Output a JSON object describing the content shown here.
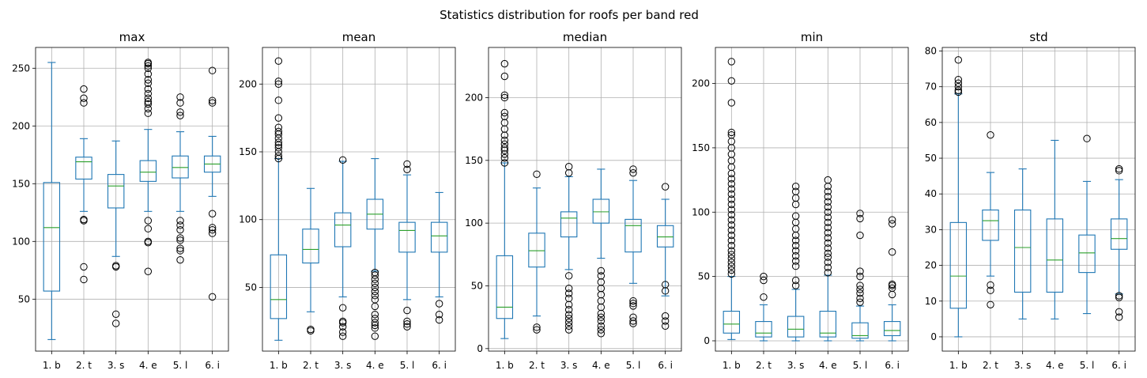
{
  "chart_data": {
    "type": "boxplot",
    "title": "Statistics distribution for roofs per band red",
    "categories": [
      "1. b",
      "2. t",
      "3. s",
      "4. e",
      "5. l",
      "6. i"
    ],
    "grid": true,
    "subplots": [
      {
        "title": "max",
        "ylim": [
          5,
          268
        ],
        "yticks": [
          50,
          100,
          150,
          200,
          250
        ],
        "boxes": [
          {
            "whislo": 15,
            "q1": 57,
            "med": 112,
            "q3": 151,
            "whishi": 255,
            "fliers": []
          },
          {
            "whislo": 126,
            "q1": 154,
            "med": 169,
            "q3": 173,
            "whishi": 189,
            "fliers": [
              67,
              78,
              118,
              119,
              220,
              224,
              232
            ]
          },
          {
            "whislo": 87,
            "q1": 129,
            "med": 148,
            "q3": 158,
            "whishi": 187,
            "fliers": [
              29,
              37,
              78,
              79
            ]
          },
          {
            "whislo": 126,
            "q1": 152,
            "med": 160,
            "q3": 170,
            "whishi": 197,
            "fliers": [
              74,
              99,
              100,
              111,
              118,
              211,
              215,
              219,
              221,
              224,
              228,
              232,
              237,
              240,
              245,
              250,
              252,
              254,
              255
            ]
          },
          {
            "whislo": 126,
            "q1": 155,
            "med": 164,
            "q3": 174,
            "whishi": 195,
            "fliers": [
              84,
              92,
              94,
              101,
              103,
              110,
              114,
              118,
              209,
              212,
              220,
              225
            ]
          },
          {
            "whislo": 139,
            "q1": 160,
            "med": 167,
            "q3": 174,
            "whishi": 191,
            "fliers": [
              52,
              107,
              110,
              112,
              124,
              220,
              222,
              248
            ]
          }
        ]
      },
      {
        "title": "mean",
        "ylim": [
          3,
          227
        ],
        "yticks": [
          50,
          100,
          150,
          200
        ],
        "boxes": [
          {
            "whislo": 11,
            "q1": 27,
            "med": 41,
            "q3": 74,
            "whishi": 145,
            "fliers": [
              145,
              147,
              150,
              153,
              155,
              157,
              160,
              163,
              165,
              168,
              175,
              188,
              200,
              202,
              217
            ]
          },
          {
            "whislo": 32,
            "q1": 68,
            "med": 78,
            "q3": 93,
            "whishi": 123,
            "fliers": [
              18,
              19
            ]
          },
          {
            "whislo": 43,
            "q1": 80,
            "med": 96,
            "q3": 105,
            "whishi": 143,
            "fliers": [
              14,
              17,
              21,
              24,
              25,
              35,
              144
            ]
          },
          {
            "whislo": 62,
            "q1": 93,
            "med": 104,
            "q3": 115,
            "whishi": 145,
            "fliers": [
              14,
              20,
              22,
              24,
              27,
              30,
              36,
              41,
              44,
              47,
              50,
              53,
              56,
              59,
              61
            ]
          },
          {
            "whislo": 41,
            "q1": 76,
            "med": 92,
            "q3": 98,
            "whishi": 133,
            "fliers": [
              21,
              23,
              25,
              33,
              137,
              141
            ]
          },
          {
            "whislo": 43,
            "q1": 76,
            "med": 88,
            "q3": 98,
            "whishi": 120,
            "fliers": [
              26,
              30,
              38
            ]
          }
        ]
      },
      {
        "title": "median",
        "ylim": [
          -2,
          240
        ],
        "yticks": [
          0,
          50,
          100,
          150,
          200
        ],
        "boxes": [
          {
            "whislo": 8,
            "q1": 24,
            "med": 33,
            "q3": 74,
            "whishi": 148,
            "fliers": [
              148,
              152,
              155,
              158,
              160,
              163,
              166,
              170,
              175,
              180,
              185,
              188,
              200,
              202,
              217,
              227
            ]
          },
          {
            "whislo": 26,
            "q1": 65,
            "med": 78,
            "q3": 92,
            "whishi": 128,
            "fliers": [
              15,
              17,
              139
            ]
          },
          {
            "whislo": 63,
            "q1": 89,
            "med": 104,
            "q3": 109,
            "whishi": 137,
            "fliers": [
              15,
              18,
              21,
              24,
              27,
              31,
              35,
              40,
              44,
              48,
              58,
              140,
              145
            ]
          },
          {
            "whislo": 72,
            "q1": 100,
            "med": 109,
            "q3": 119,
            "whishi": 143,
            "fliers": [
              12,
              15,
              18,
              22,
              25,
              28,
              33,
              38,
              43,
              48,
              53,
              58,
              62
            ]
          },
          {
            "whislo": 52,
            "q1": 77,
            "med": 98,
            "q3": 103,
            "whishi": 134,
            "fliers": [
              20,
              22,
              25,
              34,
              36,
              38,
              140,
              143
            ]
          },
          {
            "whislo": 42,
            "q1": 81,
            "med": 89,
            "q3": 98,
            "whishi": 119,
            "fliers": [
              18,
              22,
              26,
              46,
              51,
              129
            ]
          }
        ]
      },
      {
        "title": "min",
        "ylim": [
          -8,
          228
        ],
        "yticks": [
          0,
          50,
          100,
          150,
          200
        ],
        "boxes": [
          {
            "whislo": 1,
            "q1": 6,
            "med": 13,
            "q3": 23,
            "whishi": 50,
            "fliers": [
              52,
              55,
              58,
              61,
              64,
              67,
              70,
              74,
              78,
              82,
              86,
              90,
              94,
              98,
              102,
              106,
              110,
              114,
              118,
              122,
              126,
              130,
              135,
              140,
              145,
              150,
              155,
              160,
              162,
              185,
              202,
              217
            ]
          },
          {
            "whislo": 0,
            "q1": 3,
            "med": 6,
            "q3": 15,
            "whishi": 28,
            "fliers": [
              34,
              47,
              50
            ]
          },
          {
            "whislo": 0,
            "q1": 3,
            "med": 9,
            "q3": 19,
            "whishi": 40,
            "fliers": [
              43,
              47,
              58,
              62,
              66,
              70,
              74,
              78,
              82,
              87,
              92,
              97,
              106,
              111,
              116,
              120
            ]
          },
          {
            "whislo": 0,
            "q1": 3,
            "med": 6,
            "q3": 23,
            "whishi": 51,
            "fliers": [
              53,
              57,
              61,
              65,
              68,
              72,
              76,
              80,
              84,
              88,
              92,
              96,
              100,
              104,
              108,
              112,
              116,
              120,
              125
            ]
          },
          {
            "whislo": 0,
            "q1": 2,
            "med": 4,
            "q3": 14,
            "whishi": 27,
            "fliers": [
              30,
              33,
              37,
              40,
              43,
              50,
              54,
              82,
              95,
              99
            ]
          },
          {
            "whislo": 0,
            "q1": 4,
            "med": 8,
            "q3": 15,
            "whishi": 28,
            "fliers": [
              36,
              41,
              43,
              44,
              69,
              91,
              94
            ]
          }
        ]
      },
      {
        "title": "std",
        "ylim": [
          -4,
          81
        ],
        "yticks": [
          0,
          10,
          20,
          30,
          40,
          50,
          60,
          70,
          80
        ],
        "boxes": [
          {
            "whislo": 0,
            "q1": 8,
            "med": 17,
            "q3": 32,
            "whishi": 68,
            "fliers": [
              68.5,
              69,
              70,
              71,
              72,
              77.5
            ]
          },
          {
            "whislo": 17,
            "q1": 27,
            "med": 32.5,
            "q3": 35.5,
            "whishi": 46,
            "fliers": [
              9,
              13,
              14.5,
              56.5
            ]
          },
          {
            "whislo": 5,
            "q1": 12.5,
            "med": 25,
            "q3": 35.5,
            "whishi": 47,
            "fliers": []
          },
          {
            "whislo": 5,
            "q1": 12.5,
            "med": 21.5,
            "q3": 33,
            "whishi": 55,
            "fliers": []
          },
          {
            "whislo": 6.5,
            "q1": 18,
            "med": 23.5,
            "q3": 28.5,
            "whishi": 43.5,
            "fliers": [
              55.5
            ]
          },
          {
            "whislo": 12,
            "q1": 24.5,
            "med": 27.5,
            "q3": 33,
            "whishi": 44,
            "fliers": [
              5.5,
              7,
              11,
              11.5,
              46.5,
              47
            ]
          }
        ]
      }
    ]
  }
}
